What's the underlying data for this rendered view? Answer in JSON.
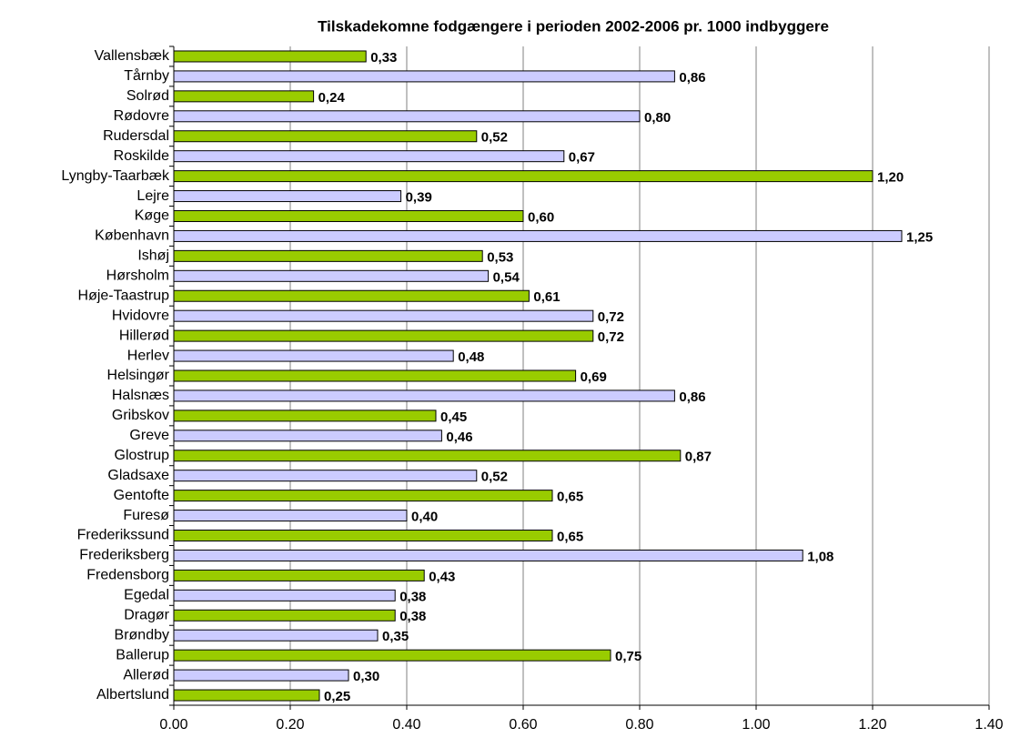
{
  "chart_data": {
    "type": "barh",
    "title": "Tilskadekomne fodgængere i perioden 2002-2006 pr. 1000 indbyggere",
    "categories": [
      "Vallensbæk",
      "Tårnby",
      "Solrød",
      "Rødovre",
      "Rudersdal",
      "Roskilde",
      "Lyngby-Taarbæk",
      "Lejre",
      "Køge",
      "København",
      "Ishøj",
      "Hørsholm",
      "Høje-Taastrup",
      "Hvidovre",
      "Hillerød",
      "Herlev",
      "Helsingør",
      "Halsnæs",
      "Gribskov",
      "Greve",
      "Glostrup",
      "Gladsaxe",
      "Gentofte",
      "Furesø",
      "Frederikssund",
      "Frederiksberg",
      "Fredensborg",
      "Egedal",
      "Dragør",
      "Brøndby",
      "Ballerup",
      "Allerød",
      "Albertslund"
    ],
    "values": [
      0.33,
      0.86,
      0.24,
      0.8,
      0.52,
      0.67,
      1.2,
      0.39,
      0.6,
      1.25,
      0.53,
      0.54,
      0.61,
      0.72,
      0.72,
      0.48,
      0.69,
      0.86,
      0.45,
      0.46,
      0.87,
      0.52,
      0.65,
      0.4,
      0.65,
      1.08,
      0.43,
      0.38,
      0.38,
      0.35,
      0.75,
      0.3,
      0.25
    ],
    "value_labels": [
      "0,33",
      "0,86",
      "0,24",
      "0,80",
      "0,52",
      "0,67",
      "1,20",
      "0,39",
      "0,60",
      "1,25",
      "0,53",
      "0,54",
      "0,61",
      "0,72",
      "0,72",
      "0,48",
      "0,69",
      "0,86",
      "0,45",
      "0,46",
      "0,87",
      "0,52",
      "0,65",
      "0,40",
      "0,65",
      "1,08",
      "0,43",
      "0,38",
      "0,38",
      "0,35",
      "0,75",
      "0,30",
      "0,25"
    ],
    "colors": [
      "#99cc00",
      "#ccccff",
      "#99cc00",
      "#ccccff",
      "#99cc00",
      "#ccccff",
      "#99cc00",
      "#ccccff",
      "#99cc00",
      "#ccccff",
      "#99cc00",
      "#ccccff",
      "#99cc00",
      "#ccccff",
      "#99cc00",
      "#ccccff",
      "#99cc00",
      "#ccccff",
      "#99cc00",
      "#ccccff",
      "#99cc00",
      "#ccccff",
      "#99cc00",
      "#ccccff",
      "#99cc00",
      "#ccccff",
      "#99cc00",
      "#ccccff",
      "#99cc00",
      "#ccccff",
      "#99cc00",
      "#ccccff",
      "#99cc00"
    ],
    "xlim": [
      0,
      1.4
    ],
    "xticks": [
      {
        "value": 0,
        "label": "0.00"
      },
      {
        "value": 0.2,
        "label": "0.20"
      },
      {
        "value": 0.4,
        "label": "0.40"
      },
      {
        "value": 0.6,
        "label": "0.60"
      },
      {
        "value": 0.8,
        "label": "0.80"
      },
      {
        "value": 1.0,
        "label": "1.00"
      },
      {
        "value": 1.2,
        "label": "1.20"
      },
      {
        "value": 1.4,
        "label": "1.40"
      }
    ],
    "grid": true
  }
}
